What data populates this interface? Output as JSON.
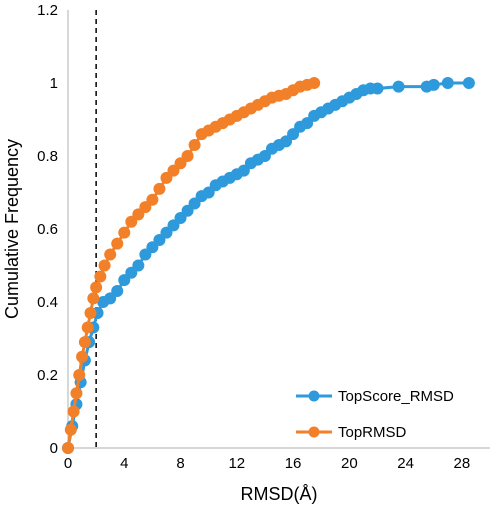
{
  "chart_data": {
    "type": "scatter",
    "xlabel": "RMSD(Å)",
    "ylabel": "Cumulative Frequency",
    "xlim": [
      0,
      30
    ],
    "ylim": [
      0,
      1.2
    ],
    "x_ticks": [
      "0",
      "4",
      "8",
      "12",
      "16",
      "20",
      "24",
      "28"
    ],
    "y_ticks": [
      "0",
      "0.2",
      "0.4",
      "0.6",
      "0.8",
      "1",
      "1.2"
    ],
    "grid": false,
    "legend_position": "bottom-right",
    "reference_line": {
      "x": 2,
      "style": "dashed",
      "color": "#000000"
    },
    "series": [
      {
        "name": "TopScore_RMSD",
        "color": "#2E9ADB",
        "x": [
          0,
          0.3,
          0.6,
          0.9,
          1.2,
          1.5,
          1.8,
          2.1,
          2.5,
          3,
          3.5,
          4,
          4.5,
          5,
          5.5,
          6,
          6.5,
          7,
          7.5,
          8,
          8.5,
          9,
          9.5,
          10,
          10.5,
          11,
          11.5,
          12,
          12.5,
          13,
          13.5,
          14,
          14.5,
          15,
          15.5,
          16,
          16.5,
          17,
          17.5,
          18,
          18.5,
          19,
          19.5,
          20,
          20.5,
          21,
          21.5,
          22,
          23.5,
          25.5,
          26,
          27,
          28.5
        ],
        "y": [
          0,
          0.06,
          0.12,
          0.18,
          0.24,
          0.29,
          0.33,
          0.37,
          0.4,
          0.41,
          0.43,
          0.46,
          0.48,
          0.5,
          0.53,
          0.55,
          0.57,
          0.59,
          0.61,
          0.63,
          0.65,
          0.67,
          0.69,
          0.7,
          0.72,
          0.73,
          0.74,
          0.75,
          0.76,
          0.78,
          0.79,
          0.8,
          0.82,
          0.83,
          0.84,
          0.86,
          0.88,
          0.89,
          0.91,
          0.92,
          0.93,
          0.94,
          0.95,
          0.96,
          0.97,
          0.98,
          0.985,
          0.985,
          0.99,
          0.99,
          0.995,
          1.0,
          1.0
        ]
      },
      {
        "name": "TopRMSD",
        "color": "#F28029",
        "x": [
          0,
          0.2,
          0.4,
          0.6,
          0.8,
          1.0,
          1.2,
          1.4,
          1.6,
          1.8,
          2.0,
          2.3,
          2.6,
          3.0,
          3.5,
          4.0,
          4.5,
          5.0,
          5.5,
          6.0,
          6.5,
          7.0,
          7.5,
          8.0,
          8.5,
          9.0,
          9.5,
          10.0,
          10.5,
          11.0,
          11.5,
          12.0,
          12.5,
          13.0,
          13.5,
          14.0,
          14.5,
          15.0,
          15.5,
          16.0,
          16.5,
          17.0,
          17.5
        ],
        "y": [
          0,
          0.05,
          0.1,
          0.15,
          0.2,
          0.25,
          0.29,
          0.33,
          0.37,
          0.41,
          0.44,
          0.47,
          0.5,
          0.53,
          0.56,
          0.59,
          0.62,
          0.64,
          0.66,
          0.68,
          0.71,
          0.74,
          0.76,
          0.78,
          0.8,
          0.83,
          0.86,
          0.87,
          0.88,
          0.89,
          0.9,
          0.91,
          0.92,
          0.93,
          0.94,
          0.95,
          0.96,
          0.965,
          0.97,
          0.98,
          0.99,
          0.995,
          1.0
        ]
      }
    ]
  }
}
